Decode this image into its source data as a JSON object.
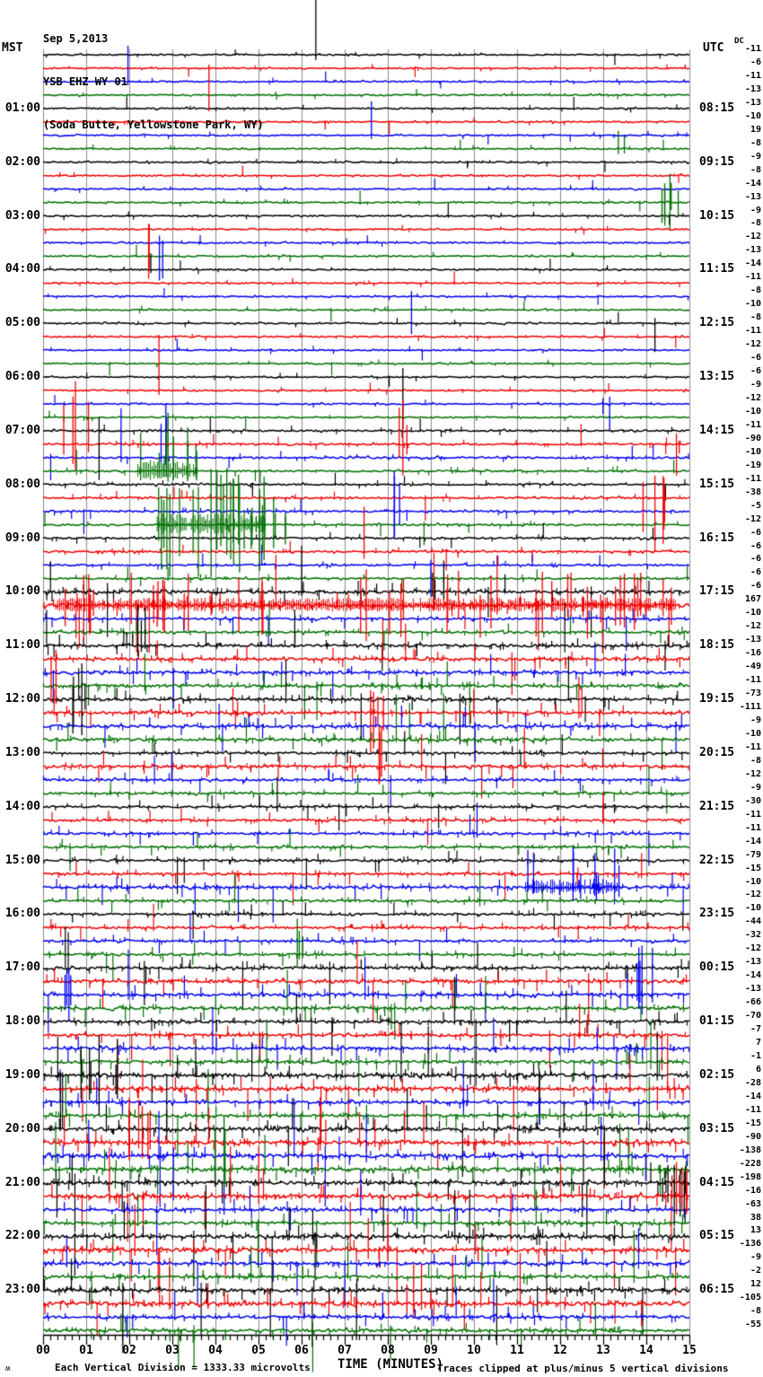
{
  "header": {
    "date": "Sep 5,2013",
    "station": "YSB EHZ WY 01",
    "location": "(Soda Butte, Yellowstone Park, WY)",
    "left_tz": "MST",
    "right_tz": "UTC",
    "dc_label": "DC"
  },
  "footer": {
    "scale_note": "Each Vertical Division = 1333.33 microvolts",
    "xaxis_title": "TIME (MINUTES)",
    "clip_note": "Traces clipped at plus/minus 5 vertical divisions",
    "watermark": "ʍ"
  },
  "chart_data": {
    "type": "line",
    "subtype": "helicorder-seismogram",
    "title": "YSB EHZ WY 01 (Soda Butte, Yellowstone Park, WY) Sep 5,2013",
    "xlabel": "TIME (MINUTES)",
    "x_range_minutes": [
      0,
      15
    ],
    "minutes_per_row": 15,
    "rows_total": 96,
    "grid": true,
    "x_ticks": [
      "00",
      "01",
      "02",
      "03",
      "04",
      "05",
      "06",
      "07",
      "08",
      "09",
      "10",
      "11",
      "12",
      "13",
      "14",
      "15"
    ],
    "mst_hour_labels": [
      "01:00",
      "02:00",
      "03:00",
      "04:00",
      "05:00",
      "06:00",
      "07:00",
      "08:00",
      "09:00",
      "10:00",
      "11:00",
      "12:00",
      "13:00",
      "14:00",
      "15:00",
      "16:00",
      "17:00",
      "18:00",
      "19:00",
      "20:00",
      "21:00",
      "22:00",
      "23:00"
    ],
    "utc_hour_labels": [
      "08:15",
      "09:15",
      "10:15",
      "11:15",
      "12:15",
      "13:15",
      "14:15",
      "15:15",
      "16:15",
      "17:15",
      "18:15",
      "19:15",
      "20:15",
      "21:15",
      "22:15",
      "23:15",
      "00:15",
      "01:15",
      "02:15",
      "03:15",
      "04:15",
      "05:15",
      "06:15"
    ],
    "dc_offsets": [
      -11,
      -6,
      -11,
      -13,
      -13,
      -10,
      19,
      -8,
      -9,
      -8,
      -14,
      -13,
      -9,
      -8,
      -12,
      -13,
      -14,
      -11,
      -8,
      -10,
      -8,
      -11,
      -12,
      -6,
      -6,
      -9,
      -12,
      -10,
      -11,
      -90,
      -10,
      -19,
      -11,
      -38,
      -5,
      -12,
      -6,
      -6,
      -6,
      -6,
      -6,
      167,
      -10,
      -12,
      -13,
      -16,
      -49,
      -11,
      -73,
      -111,
      -9,
      -10,
      -11,
      -8,
      -12,
      -9,
      -30,
      -11,
      -11,
      -14,
      -79,
      -15,
      -10,
      -12,
      -10,
      -44,
      -32,
      -12,
      -13,
      -14,
      -13,
      -66,
      -70,
      -7,
      7,
      -1,
      6,
      -28,
      -14,
      -11,
      -15,
      -90,
      -138,
      -228,
      -198,
      -16,
      -63,
      38,
      13,
      -136,
      -9,
      -2,
      12,
      -105,
      -8,
      -55
    ],
    "trace_color_cycle": [
      "#000000",
      "#ee0000",
      "#0000ee",
      "#007000"
    ],
    "grid_color": "#8c8c8c",
    "row_activity": [
      1,
      1,
      1,
      1,
      1,
      1,
      1,
      1,
      1,
      1,
      1,
      1,
      1,
      1,
      1,
      1,
      1,
      1,
      1,
      1,
      1,
      1,
      1,
      1,
      1,
      1,
      1,
      1,
      2,
      2,
      2,
      2,
      2,
      2,
      2,
      2,
      2,
      2,
      2,
      2,
      4,
      5,
      3,
      3,
      4,
      4,
      4,
      4,
      4,
      4,
      4,
      4,
      3,
      4,
      3,
      3,
      3,
      3,
      3,
      3,
      3,
      3,
      4,
      3,
      3,
      3,
      3,
      3,
      4,
      4,
      4,
      4,
      4,
      4,
      4,
      4,
      5,
      5,
      4,
      4,
      5,
      5,
      5,
      5,
      5,
      5,
      4,
      4,
      5,
      5,
      4,
      4,
      5,
      5,
      4,
      4
    ],
    "events": [
      {
        "row": 0,
        "minute": 6.33,
        "up": 61,
        "down": 6,
        "count": 1,
        "spread": 0
      },
      {
        "row": 1,
        "minute": 3.85,
        "up": 4,
        "down": 48,
        "count": 1,
        "spread": 0
      },
      {
        "row": 2,
        "minute": 1.97,
        "up": 40,
        "down": 4,
        "count": 1,
        "spread": 0
      },
      {
        "row": 6,
        "minute": 7.62,
        "up": 38,
        "down": 4,
        "count": 1,
        "spread": 0
      },
      {
        "row": 7,
        "minute": 13.35,
        "up": 20,
        "down": 6,
        "count": 2,
        "spread": 0.15
      },
      {
        "row": 11,
        "minute": 14.55,
        "up": 32,
        "down": 30,
        "count": 6,
        "spread": 0.25
      },
      {
        "row": 13,
        "minute": 2.45,
        "up": 6,
        "down": 55,
        "count": 2,
        "spread": 0.15
      },
      {
        "row": 14,
        "minute": 2.7,
        "up": 8,
        "down": 42,
        "count": 2,
        "spread": 0.08
      },
      {
        "row": 16,
        "minute": 2.5,
        "up": 18,
        "down": 4,
        "count": 1,
        "spread": 0
      },
      {
        "row": 18,
        "minute": 8.55,
        "up": 6,
        "down": 42,
        "count": 1,
        "spread": 0
      },
      {
        "row": 20,
        "minute": 14.2,
        "up": 6,
        "down": 32,
        "count": 1,
        "spread": 0
      },
      {
        "row": 24,
        "minute": 8.35,
        "up": 10,
        "down": 58,
        "count": 1,
        "spread": 0
      },
      {
        "row": 25,
        "minute": 2.69,
        "up": 62,
        "down": 5,
        "count": 1,
        "spread": 0
      },
      {
        "row": 26,
        "minute": 13.15,
        "up": 8,
        "down": 28,
        "count": 2,
        "spread": 0.2
      },
      {
        "row": 28,
        "minute": 1.3,
        "up": 15,
        "down": 55,
        "count": 1,
        "spread": 0
      },
      {
        "row": 29,
        "minute": 0.75,
        "up": 70,
        "down": 28,
        "count": 4,
        "spread": 0.4
      },
      {
        "row": 29,
        "minute": 8.35,
        "up": 50,
        "down": 35,
        "count": 3,
        "spread": 0.15
      },
      {
        "row": 29,
        "minute": 14.7,
        "up": 12,
        "down": 35,
        "count": 2,
        "spread": 0.1
      },
      {
        "row": 30,
        "minute": 1.81,
        "up": 55,
        "down": 5,
        "count": 1,
        "spread": 0
      },
      {
        "row": 30,
        "minute": 2.85,
        "up": 60,
        "down": 8,
        "count": 3,
        "spread": 0.12
      },
      {
        "row": 31,
        "minute": 2.9,
        "up": 65,
        "down": 12,
        "count": 10,
        "spread": 0.7
      },
      {
        "row": 33,
        "minute": 14.2,
        "up": 25,
        "down": 60,
        "count": 5,
        "spread": 0.3
      },
      {
        "row": 34,
        "minute": 8.15,
        "up": 45,
        "down": 30,
        "count": 3,
        "spread": 0.2
      },
      {
        "row": 35,
        "minute": 3.9,
        "up": 62,
        "down": 58,
        "count": 24,
        "spread": 1.25
      },
      {
        "row": 35,
        "minute": 5.35,
        "up": 30,
        "down": 26,
        "count": 6,
        "spread": 0.45
      },
      {
        "row": 37,
        "minute": 7.45,
        "up": 50,
        "down": 8,
        "count": 1,
        "spread": 0
      },
      {
        "row": 38,
        "minute": 9.0,
        "up": 6,
        "down": 35,
        "count": 1,
        "spread": 0
      },
      {
        "row": 40,
        "minute": 9.3,
        "up": 35,
        "down": 10,
        "count": 3,
        "spread": 0.4
      },
      {
        "row": 41,
        "minute": 7.5,
        "up": 40,
        "down": 40,
        "count": 46,
        "spread": 7.2
      },
      {
        "row": 44,
        "minute": 2.2,
        "up": 45,
        "down": 12,
        "count": 3,
        "spread": 0.3
      },
      {
        "row": 45,
        "minute": 0.3,
        "up": 10,
        "down": 50,
        "count": 2,
        "spread": 0.2
      },
      {
        "row": 48,
        "minute": 0.9,
        "up": 40,
        "down": 40,
        "count": 4,
        "spread": 0.4
      },
      {
        "row": 49,
        "minute": 7.6,
        "up": 25,
        "down": 45,
        "count": 4,
        "spread": 0.3
      },
      {
        "row": 53,
        "minute": 7.8,
        "up": 45,
        "down": 20,
        "count": 3,
        "spread": 0.25
      },
      {
        "row": 62,
        "minute": 12.3,
        "up": 45,
        "down": 15,
        "count": 10,
        "spread": 1.1
      },
      {
        "row": 67,
        "minute": 5.9,
        "up": 40,
        "down": 15,
        "count": 3,
        "spread": 0.2
      },
      {
        "row": 70,
        "minute": 0.6,
        "up": 30,
        "down": 30,
        "count": 4,
        "spread": 0.3
      },
      {
        "row": 70,
        "minute": 13.9,
        "up": 55,
        "down": 22,
        "count": 6,
        "spread": 0.35
      },
      {
        "row": 76,
        "minute": 1.3,
        "up": 45,
        "down": 45,
        "count": 6,
        "spread": 0.5
      },
      {
        "row": 81,
        "minute": 2.0,
        "up": 50,
        "down": 20,
        "count": 5,
        "spread": 0.8
      },
      {
        "row": 83,
        "minute": 4.2,
        "up": 60,
        "down": 20,
        "count": 3,
        "spread": 0.3
      },
      {
        "row": 84,
        "minute": 14.65,
        "up": 20,
        "down": 48,
        "count": 6,
        "spread": 0.3
      },
      {
        "row": 85,
        "minute": 14.7,
        "up": 38,
        "down": 20,
        "count": 5,
        "spread": 0.3
      },
      {
        "row": 89,
        "minute": 8.0,
        "up": 40,
        "down": 12,
        "count": 3,
        "spread": 0.5
      },
      {
        "row": 92,
        "minute": 1.85,
        "up": 8,
        "down": 70,
        "count": 1,
        "spread": 0
      },
      {
        "row": 93,
        "minute": 8.6,
        "up": 45,
        "down": 15,
        "count": 4,
        "spread": 0.4
      }
    ]
  }
}
